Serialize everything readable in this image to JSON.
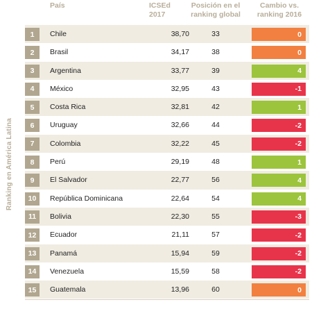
{
  "side_label": "Ranking en América Latina",
  "headers": {
    "pais": "País",
    "icsed_line1": "ICSEd",
    "icsed_line2": "2017",
    "pos_line1": "Posición en el",
    "pos_line2": "ranking global",
    "cambio_line1": "Cambio vs.",
    "cambio_line2": "ranking 2016"
  },
  "colors": {
    "positive": "#9cc43c",
    "zero": "#f28040",
    "negative": "#e8344a",
    "rank_box": "#b1a68f",
    "shade": "#f0ece2"
  },
  "chart_data": {
    "type": "table",
    "columns": [
      "País",
      "ICSEd 2017",
      "Posición en el ranking global",
      "Cambio vs. ranking 2016"
    ],
    "rows": [
      {
        "rank": "1",
        "country": "Chile",
        "icsed": "38,70",
        "global": "33",
        "change": 0
      },
      {
        "rank": "2",
        "country": "Brasil",
        "icsed": "34,17",
        "global": "38",
        "change": 0
      },
      {
        "rank": "3",
        "country": "Argentina",
        "icsed": "33,77",
        "global": "39",
        "change": 4
      },
      {
        "rank": "4",
        "country": "México",
        "icsed": "32,95",
        "global": "43",
        "change": -1
      },
      {
        "rank": "5",
        "country": "Costa Rica",
        "icsed": "32,81",
        "global": "42",
        "change": 1
      },
      {
        "rank": "6",
        "country": "Uruguay",
        "icsed": "32,66",
        "global": "44",
        "change": -2
      },
      {
        "rank": "7",
        "country": "Colombia",
        "icsed": "32,22",
        "global": "45",
        "change": -2
      },
      {
        "rank": "8",
        "country": "Perú",
        "icsed": "29,19",
        "global": "48",
        "change": 1
      },
      {
        "rank": "9",
        "country": "El Salvador",
        "icsed": "22,77",
        "global": "56",
        "change": 4
      },
      {
        "rank": "10",
        "country": "República Dominicana",
        "icsed": "22,64",
        "global": "54",
        "change": 4
      },
      {
        "rank": "11",
        "country": "Bolivia",
        "icsed": "22,30",
        "global": "55",
        "change": -3
      },
      {
        "rank": "12",
        "country": "Ecuador",
        "icsed": "21,11",
        "global": "57",
        "change": -2
      },
      {
        "rank": "13",
        "country": "Panamá",
        "icsed": "15,94",
        "global": "59",
        "change": -2
      },
      {
        "rank": "14",
        "country": "Venezuela",
        "icsed": "15,59",
        "global": "58",
        "change": -2
      },
      {
        "rank": "15",
        "country": "Guatemala",
        "icsed": "13,96",
        "global": "60",
        "change": 0
      }
    ]
  }
}
